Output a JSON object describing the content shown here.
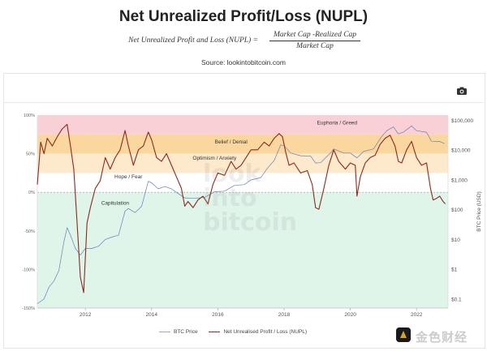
{
  "header": {
    "title": "Net Unrealized Profit/Loss (NUPL)",
    "formula_lhs": "Net Unrealized Profit and Loss (NUPL) =",
    "formula_numerator": "Market Cap -Realized Cap",
    "formula_denominator": "Market Cap",
    "source": "Source: lookintobitcoin.com"
  },
  "toolbar": {
    "camera_icon": "camera-icon"
  },
  "watermark": {
    "line1": "look",
    "line2": "into",
    "line3": "bitcoin"
  },
  "branding": {
    "logo_text": "金色财经",
    "logo_icon": "bitcoin-badge-icon"
  },
  "colors": {
    "euphoria": "#f8d0d6",
    "belief": "#fbd7a0",
    "optimism": "#fde9cc",
    "hope": "#ffffff",
    "capitulation": "#dff5ea",
    "nupl_line": "#8b2a1c",
    "price_line": "#6a7fb0"
  },
  "chart_data": {
    "type": "line",
    "title": "",
    "xlabel": "",
    "x_ticks": [
      "2012",
      "2014",
      "2016",
      "2018",
      "2020",
      "2022"
    ],
    "y_left_ticks": [
      "100%",
      "50%",
      "0%",
      "-50%",
      "-100%",
      "-150%"
    ],
    "y_left_range": [
      -150,
      100
    ],
    "y_right_label": "BTC Price (USD)",
    "y_right_ticks": [
      "$100,000",
      "$10,000",
      "$1,000",
      "$100",
      "$10",
      "$1",
      "$0.1"
    ],
    "y_right_scale": "log",
    "y_right_range": [
      0.05,
      150000
    ],
    "zones": [
      {
        "name": "Euphoria / Greed",
        "from": 75,
        "to": 100,
        "color_key": "euphoria"
      },
      {
        "name": "Belief / Denial",
        "from": 50,
        "to": 75,
        "color_key": "belief"
      },
      {
        "name": "Optimism / Anxiety",
        "from": 25,
        "to": 50,
        "color_key": "optimism"
      },
      {
        "name": "Hope / Fear",
        "from": 0,
        "to": 25,
        "color_key": "hope"
      },
      {
        "name": "Capitulation",
        "from": -150,
        "to": 0,
        "color_key": "capitulation"
      }
    ],
    "series": [
      {
        "name": "BTC Price",
        "axis": "right",
        "color_key": "price_line",
        "points": [
          [
            2010.55,
            0.07
          ],
          [
            2010.75,
            0.1
          ],
          [
            2010.9,
            0.25
          ],
          [
            2011.05,
            0.4
          ],
          [
            2011.2,
            0.9
          ],
          [
            2011.35,
            8
          ],
          [
            2011.45,
            25
          ],
          [
            2011.55,
            14
          ],
          [
            2011.7,
            5
          ],
          [
            2011.85,
            3
          ],
          [
            2012.0,
            5
          ],
          [
            2012.2,
            5
          ],
          [
            2012.4,
            6
          ],
          [
            2012.6,
            10
          ],
          [
            2012.8,
            12
          ],
          [
            2013.0,
            14
          ],
          [
            2013.2,
            90
          ],
          [
            2013.3,
            110
          ],
          [
            2013.5,
            80
          ],
          [
            2013.7,
            130
          ],
          [
            2013.9,
            900
          ],
          [
            2014.0,
            800
          ],
          [
            2014.2,
            500
          ],
          [
            2014.4,
            600
          ],
          [
            2014.6,
            500
          ],
          [
            2014.8,
            350
          ],
          [
            2015.0,
            250
          ],
          [
            2015.3,
            240
          ],
          [
            2015.6,
            260
          ],
          [
            2015.9,
            400
          ],
          [
            2016.2,
            420
          ],
          [
            2016.5,
            650
          ],
          [
            2016.8,
            700
          ],
          [
            2017.0,
            1000
          ],
          [
            2017.3,
            1200
          ],
          [
            2017.5,
            2500
          ],
          [
            2017.7,
            4500
          ],
          [
            2017.9,
            15000
          ],
          [
            2018.0,
            14000
          ],
          [
            2018.2,
            8000
          ],
          [
            2018.5,
            6500
          ],
          [
            2018.8,
            6300
          ],
          [
            2018.95,
            3700
          ],
          [
            2019.1,
            3800
          ],
          [
            2019.4,
            8000
          ],
          [
            2019.5,
            11000
          ],
          [
            2019.8,
            8000
          ],
          [
            2020.0,
            8000
          ],
          [
            2020.2,
            5500
          ],
          [
            2020.4,
            9000
          ],
          [
            2020.7,
            11000
          ],
          [
            2020.95,
            29000
          ],
          [
            2021.1,
            45000
          ],
          [
            2021.3,
            60000
          ],
          [
            2021.45,
            35000
          ],
          [
            2021.6,
            40000
          ],
          [
            2021.85,
            65000
          ],
          [
            2022.0,
            45000
          ],
          [
            2022.3,
            40000
          ],
          [
            2022.45,
            20000
          ],
          [
            2022.7,
            19500
          ],
          [
            2022.85,
            16500
          ]
        ]
      },
      {
        "name": "Net Unrealised Profit / Loss (NUPL)",
        "axis": "left",
        "color_key": "nupl_line",
        "points": [
          [
            2010.55,
            10
          ],
          [
            2010.65,
            65
          ],
          [
            2010.75,
            50
          ],
          [
            2010.85,
            70
          ],
          [
            2011.0,
            60
          ],
          [
            2011.15,
            72
          ],
          [
            2011.3,
            82
          ],
          [
            2011.45,
            88
          ],
          [
            2011.55,
            60
          ],
          [
            2011.65,
            30
          ],
          [
            2011.75,
            -40
          ],
          [
            2011.85,
            -110
          ],
          [
            2011.95,
            -130
          ],
          [
            2012.05,
            -40
          ],
          [
            2012.15,
            -20
          ],
          [
            2012.3,
            5
          ],
          [
            2012.45,
            15
          ],
          [
            2012.6,
            45
          ],
          [
            2012.75,
            30
          ],
          [
            2012.9,
            45
          ],
          [
            2013.05,
            55
          ],
          [
            2013.2,
            80
          ],
          [
            2013.3,
            60
          ],
          [
            2013.45,
            35
          ],
          [
            2013.6,
            55
          ],
          [
            2013.75,
            60
          ],
          [
            2013.9,
            78
          ],
          [
            2014.0,
            68
          ],
          [
            2014.15,
            45
          ],
          [
            2014.3,
            40
          ],
          [
            2014.45,
            50
          ],
          [
            2014.6,
            35
          ],
          [
            2014.75,
            20
          ],
          [
            2014.9,
            5
          ],
          [
            2015.0,
            -18
          ],
          [
            2015.1,
            -12
          ],
          [
            2015.25,
            -20
          ],
          [
            2015.4,
            -10
          ],
          [
            2015.55,
            -5
          ],
          [
            2015.7,
            -15
          ],
          [
            2015.85,
            10
          ],
          [
            2016.0,
            25
          ],
          [
            2016.2,
            22
          ],
          [
            2016.4,
            40
          ],
          [
            2016.55,
            30
          ],
          [
            2016.7,
            35
          ],
          [
            2016.85,
            45
          ],
          [
            2017.0,
            55
          ],
          [
            2017.2,
            55
          ],
          [
            2017.4,
            65
          ],
          [
            2017.55,
            60
          ],
          [
            2017.7,
            70
          ],
          [
            2017.85,
            76
          ],
          [
            2017.95,
            72
          ],
          [
            2018.05,
            52
          ],
          [
            2018.15,
            35
          ],
          [
            2018.3,
            38
          ],
          [
            2018.5,
            25
          ],
          [
            2018.7,
            28
          ],
          [
            2018.85,
            10
          ],
          [
            2018.95,
            -20
          ],
          [
            2019.05,
            -22
          ],
          [
            2019.2,
            5
          ],
          [
            2019.35,
            35
          ],
          [
            2019.5,
            55
          ],
          [
            2019.65,
            40
          ],
          [
            2019.85,
            30
          ],
          [
            2020.0,
            38
          ],
          [
            2020.15,
            35
          ],
          [
            2020.2,
            -5
          ],
          [
            2020.3,
            20
          ],
          [
            2020.45,
            38
          ],
          [
            2020.6,
            45
          ],
          [
            2020.75,
            48
          ],
          [
            2020.9,
            62
          ],
          [
            2021.05,
            70
          ],
          [
            2021.2,
            74
          ],
          [
            2021.35,
            60
          ],
          [
            2021.45,
            40
          ],
          [
            2021.55,
            38
          ],
          [
            2021.7,
            55
          ],
          [
            2021.85,
            66
          ],
          [
            2022.0,
            45
          ],
          [
            2022.15,
            35
          ],
          [
            2022.3,
            38
          ],
          [
            2022.42,
            5
          ],
          [
            2022.5,
            -10
          ],
          [
            2022.6,
            -8
          ],
          [
            2022.7,
            -5
          ],
          [
            2022.8,
            -12
          ],
          [
            2022.87,
            -15
          ]
        ]
      }
    ],
    "legend_position": "bottom-center",
    "grid": false
  },
  "legend": {
    "price_label": "BTC Price",
    "nupl_label": "Net Unrealised Profit / Loss (NUPL)"
  }
}
